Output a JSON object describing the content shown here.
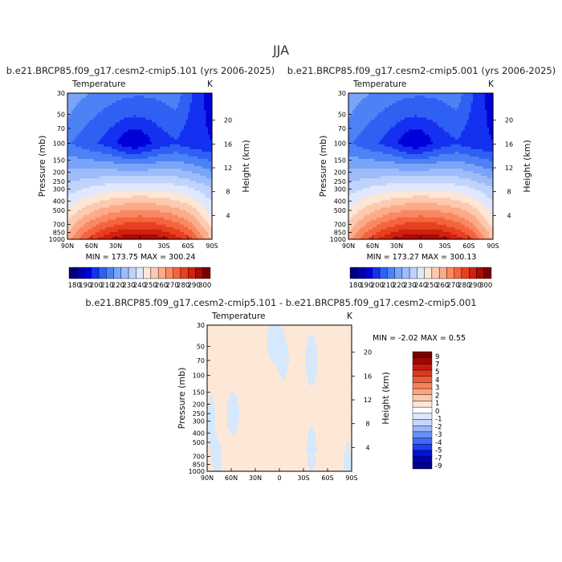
{
  "page": {
    "season_title": "JJA"
  },
  "colors": {
    "temp_palette": [
      "#00007a",
      "#0000ad",
      "#0000d8",
      "#1530f0",
      "#2f60f4",
      "#4d82f6",
      "#7aa4f8",
      "#9ebcfa",
      "#bfd3fb",
      "#dfe8fd",
      "#fde6d6",
      "#fccab0",
      "#fcab88",
      "#f98962",
      "#f4643f",
      "#e8401f",
      "#cf2010",
      "#a80a05",
      "#7a0000"
    ],
    "diff_palette": [
      "#00008a",
      "#0000b4",
      "#0010e0",
      "#1d40f0",
      "#3f6af4",
      "#6a90f6",
      "#98b6f8",
      "#c4d6fb",
      "#dce9fc",
      "#ffffff",
      "#fde6d6",
      "#fbc9ab",
      "#fba57f",
      "#f7815a",
      "#f05a36",
      "#e0381c",
      "#c71a0c",
      "#9e0704",
      "#760000"
    ]
  },
  "chart_data": [
    {
      "type": "heatmap",
      "panel": "left",
      "title": "b.e21.BRCP85.f09_g17.cesm2-cmip5.101 (yrs 2006-2025)",
      "variable": "Temperature",
      "units": "K",
      "ylabel": "Pressure (mb)",
      "y2label": "Height (km)",
      "x_ticks": [
        "90N",
        "60N",
        "30N",
        "0",
        "30S",
        "60S",
        "90S"
      ],
      "y_ticks": [
        "30",
        "50",
        "70",
        "100",
        "150",
        "200",
        "250",
        "300",
        "400",
        "500",
        "700",
        "850",
        "1000"
      ],
      "y2_ticks": [
        "20",
        "16",
        "12",
        "8",
        "4"
      ],
      "stats": "MIN = 173.75   MAX = 300.24",
      "colorbar_labels": [
        "180",
        "190",
        "200",
        "210",
        "220",
        "230",
        "240",
        "250",
        "260",
        "270",
        "280",
        "290",
        "300"
      ],
      "xlim": [
        90,
        -90
      ],
      "ylim": [
        1000,
        30
      ]
    },
    {
      "type": "heatmap",
      "panel": "right",
      "title": "b.e21.BRCP85.f09_g17.cesm2-cmip5.001 (yrs 2006-2025)",
      "variable": "Temperature",
      "units": "K",
      "ylabel": "Pressure (mb)",
      "y2label": "Height (km)",
      "x_ticks": [
        "90N",
        "60N",
        "30N",
        "0",
        "30S",
        "60S",
        "90S"
      ],
      "y_ticks": [
        "30",
        "50",
        "70",
        "100",
        "150",
        "200",
        "250",
        "300",
        "400",
        "500",
        "700",
        "850",
        "1000"
      ],
      "y2_ticks": [
        "20",
        "16",
        "12",
        "8",
        "4"
      ],
      "stats": "MIN = 173.27   MAX = 300.13",
      "colorbar_labels": [
        "180",
        "190",
        "200",
        "210",
        "220",
        "230",
        "240",
        "250",
        "260",
        "270",
        "280",
        "290",
        "300"
      ],
      "xlim": [
        90,
        -90
      ],
      "ylim": [
        1000,
        30
      ]
    },
    {
      "type": "heatmap",
      "panel": "difference",
      "title": "b.e21.BRCP85.f09_g17.cesm2-cmip5.101 - b.e21.BRCP85.f09_g17.cesm2-cmip5.001",
      "variable": "Temperature",
      "units": "K",
      "ylabel": "Pressure (mb)",
      "y2label": "Height (km)",
      "x_ticks": [
        "90N",
        "60N",
        "30N",
        "0",
        "30S",
        "60S",
        "90S"
      ],
      "y_ticks": [
        "30",
        "50",
        "70",
        "100",
        "150",
        "200",
        "250",
        "300",
        "400",
        "500",
        "700",
        "850",
        "1000"
      ],
      "y2_ticks": [
        "20",
        "16",
        "12",
        "8",
        "4"
      ],
      "stats": "MIN =    -2.02   MAX =     0.55",
      "colorbar_labels": [
        "9",
        "7",
        "5",
        "4",
        "3",
        "2",
        "1",
        "0",
        "-1",
        "-2",
        "-3",
        "-4",
        "-5",
        "-7",
        "-9"
      ],
      "xlim": [
        90,
        -90
      ],
      "ylim": [
        1000,
        30
      ]
    }
  ]
}
